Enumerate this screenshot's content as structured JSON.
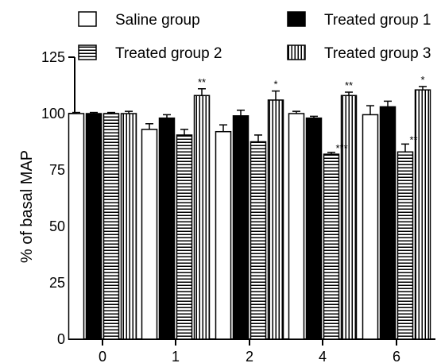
{
  "chart_data": {
    "type": "bar",
    "title": "",
    "xlabel": "",
    "ylabel": "% of basal MAP",
    "ylim": [
      0,
      125
    ],
    "yticks": [
      "0",
      "25",
      "50",
      "75",
      "100",
      "125"
    ],
    "categories": [
      "0",
      "1",
      "2",
      "4",
      "6"
    ],
    "legend_position": "top",
    "grid": false,
    "series": [
      {
        "name": "Saline group",
        "pattern": "white",
        "values": [
          100,
          93,
          92,
          100,
          99.5
        ],
        "errors": [
          0.5,
          2.5,
          3,
          1,
          4
        ],
        "significance": [
          "",
          "",
          "",
          "",
          ""
        ]
      },
      {
        "name": "Treated group 1",
        "pattern": "black",
        "values": [
          100,
          98,
          99,
          98,
          103
        ],
        "errors": [
          0.5,
          1.5,
          2.5,
          0.8,
          2.5
        ],
        "significance": [
          "",
          "",
          "",
          "",
          ""
        ]
      },
      {
        "name": "Treated group 2",
        "pattern": "horizontal-stripes",
        "values": [
          100,
          90.5,
          87.5,
          82,
          83
        ],
        "errors": [
          0.5,
          2.5,
          3,
          0.8,
          3.5
        ],
        "significance": [
          "",
          "",
          "",
          "***",
          "**"
        ]
      },
      {
        "name": "Treated group 3",
        "pattern": "vertical-stripes",
        "values": [
          100,
          108,
          106,
          108,
          110.5
        ],
        "errors": [
          1,
          3,
          4,
          1.5,
          1.5
        ],
        "significance": [
          "",
          "**",
          "*",
          "**",
          "*"
        ]
      }
    ]
  }
}
